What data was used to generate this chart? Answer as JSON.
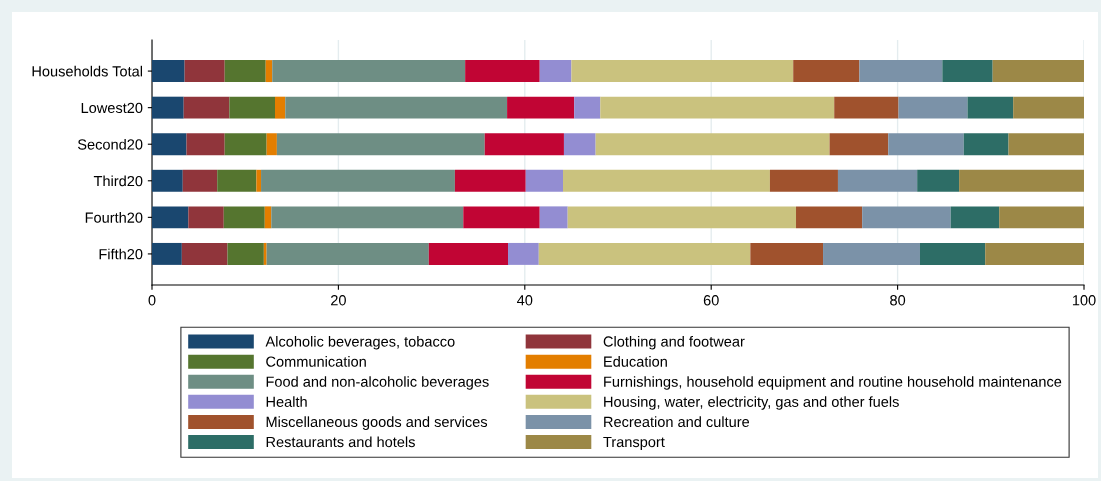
{
  "chart_data": {
    "type": "bar",
    "orientation": "horizontal",
    "stacked": true,
    "categories": [
      "Households Total",
      "Lowest20",
      "Second20",
      "Third20",
      "Fourth20",
      "Fifth20"
    ],
    "series": [
      {
        "name": "Alcoholic beverages, tobacco",
        "color": "#1a476f",
        "values": [
          3.5,
          3.4,
          3.7,
          3.3,
          3.9,
          3.2
        ]
      },
      {
        "name": "Clothing and footwear",
        "color": "#90353b",
        "values": [
          4.3,
          4.9,
          4.1,
          3.7,
          3.8,
          4.9
        ]
      },
      {
        "name": "Communication",
        "color": "#55752f",
        "values": [
          4.4,
          4.9,
          4.5,
          4.2,
          4.4,
          3.9
        ]
      },
      {
        "name": "Education",
        "color": "#e37e00",
        "values": [
          0.7,
          1.1,
          1.1,
          0.5,
          0.7,
          0.3
        ]
      },
      {
        "name": "Food and non-alcoholic beverages",
        "color": "#6e8e84",
        "values": [
          20.7,
          23.8,
          22.3,
          20.8,
          20.6,
          17.4
        ]
      },
      {
        "name": "Furnishings, household equipment and routine household maintenance",
        "color": "#c10534",
        "values": [
          8.0,
          7.2,
          8.5,
          7.6,
          8.2,
          8.5
        ]
      },
      {
        "name": "Health",
        "color": "#938dd2",
        "values": [
          3.4,
          2.8,
          3.4,
          4.0,
          3.0,
          3.3
        ]
      },
      {
        "name": "Housing, water, electricity, gas and other fuels",
        "color": "#cac27e",
        "values": [
          23.8,
          25.1,
          25.1,
          22.2,
          24.5,
          22.7
        ]
      },
      {
        "name": "Miscellaneous goods and services",
        "color": "#a0522d",
        "values": [
          7.1,
          6.9,
          6.3,
          7.3,
          7.1,
          7.8
        ]
      },
      {
        "name": "Recreation and culture",
        "color": "#7b92a8",
        "values": [
          8.9,
          7.4,
          8.1,
          8.5,
          9.5,
          10.4
        ]
      },
      {
        "name": "Restaurants and hotels",
        "color": "#2d6d66",
        "values": [
          5.4,
          4.9,
          4.8,
          4.5,
          5.2,
          7.0
        ]
      },
      {
        "name": "Transport",
        "color": "#9c8847",
        "values": [
          9.8,
          7.6,
          8.1,
          13.4,
          9.1,
          10.6
        ]
      }
    ],
    "xlim": [
      0,
      100
    ],
    "xticks": [
      0,
      20,
      40,
      60,
      80,
      100
    ],
    "grid": "x",
    "legend": "bottom"
  }
}
